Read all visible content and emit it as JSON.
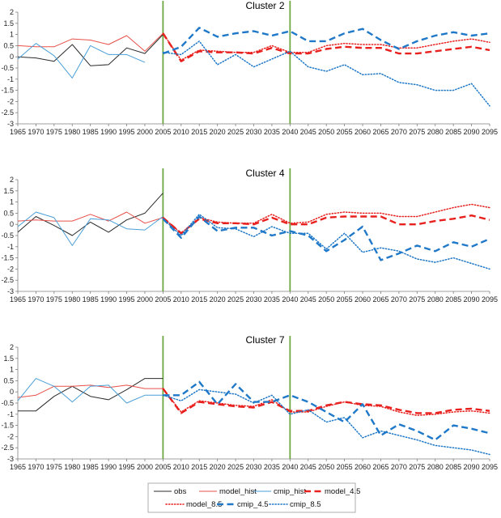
{
  "chart_data": [
    {
      "type": "line",
      "title": "Cluster 2",
      "xlabel": "",
      "ylabel": "",
      "ylim": [
        -3,
        2
      ],
      "yticks": [
        2,
        1.5,
        1,
        0.5,
        0,
        -0.5,
        -1,
        -1.5,
        -2,
        -2.5,
        -3
      ],
      "x": [
        1965,
        1970,
        1975,
        1980,
        1985,
        1990,
        1995,
        2000,
        2005,
        2010,
        2015,
        2020,
        2025,
        2030,
        2035,
        2040,
        2045,
        2050,
        2055,
        2060,
        2065,
        2070,
        2075,
        2080,
        2085,
        2090,
        2095
      ],
      "vlines": [
        2005,
        2040
      ],
      "grid": false,
      "series": [
        {
          "name": "obs",
          "x": [
            1965,
            1970,
            1975,
            1980,
            1985,
            1990,
            1995,
            2000,
            2005
          ],
          "values": [
            0.0,
            -0.05,
            -0.2,
            0.55,
            -0.4,
            -0.35,
            0.4,
            0.15,
            1.0
          ]
        },
        {
          "name": "model_hist",
          "x": [
            1965,
            1970,
            1975,
            1980,
            1985,
            1990,
            1995,
            2000,
            2005
          ],
          "values": [
            0.5,
            0.45,
            0.45,
            0.8,
            0.75,
            0.55,
            0.95,
            0.25,
            1.05
          ]
        },
        {
          "name": "cmip_hist",
          "x": [
            1965,
            1970,
            1975,
            1980,
            1985,
            1990,
            1995,
            2000
          ],
          "values": [
            -0.1,
            0.6,
            0.05,
            -0.95,
            0.5,
            0.1,
            0.1,
            -0.25
          ]
        },
        {
          "name": "model_4.5",
          "x": [
            2005,
            2010,
            2015,
            2020,
            2025,
            2030,
            2035,
            2040,
            2045,
            2050,
            2055,
            2060,
            2065,
            2070,
            2075,
            2080,
            2085,
            2090,
            2095
          ],
          "values": [
            1.05,
            -0.2,
            0.25,
            0.2,
            0.2,
            0.15,
            0.4,
            0.15,
            0.15,
            0.35,
            0.45,
            0.4,
            0.4,
            0.15,
            0.15,
            0.25,
            0.35,
            0.45,
            0.3
          ]
        },
        {
          "name": "model_8.5",
          "x": [
            2005,
            2010,
            2015,
            2020,
            2025,
            2030,
            2035,
            2040,
            2045,
            2050,
            2055,
            2060,
            2065,
            2070,
            2075,
            2080,
            2085,
            2090,
            2095
          ],
          "values": [
            1.05,
            -0.15,
            0.3,
            0.25,
            0.2,
            0.2,
            0.5,
            0.2,
            0.2,
            0.5,
            0.6,
            0.55,
            0.55,
            0.4,
            0.4,
            0.55,
            0.7,
            0.8,
            0.65
          ]
        },
        {
          "name": "cmip_4.5",
          "x": [
            2005,
            2010,
            2015,
            2020,
            2025,
            2030,
            2035,
            2040,
            2045,
            2050,
            2055,
            2060,
            2065,
            2070,
            2075,
            2080,
            2085,
            2090,
            2095
          ],
          "values": [
            0.15,
            0.45,
            1.3,
            0.9,
            1.05,
            1.15,
            0.95,
            1.15,
            0.7,
            0.7,
            1.05,
            1.25,
            0.75,
            0.35,
            0.7,
            0.95,
            1.1,
            0.95,
            1.05
          ]
        },
        {
          "name": "cmip_8.5",
          "x": [
            2005,
            2010,
            2015,
            2020,
            2025,
            2030,
            2035,
            2040,
            2045,
            2050,
            2055,
            2060,
            2065,
            2070,
            2075,
            2080,
            2085,
            2090,
            2095
          ],
          "values": [
            0.2,
            0.1,
            0.7,
            -0.35,
            0.1,
            -0.45,
            -0.1,
            0.25,
            -0.45,
            -0.65,
            -0.35,
            -0.8,
            -0.75,
            -1.15,
            -1.25,
            -1.5,
            -1.5,
            -1.2,
            -2.2
          ]
        }
      ]
    },
    {
      "type": "line",
      "title": "Cluster 4",
      "xlabel": "",
      "ylabel": "",
      "ylim": [
        -3,
        2
      ],
      "yticks": [
        2,
        1.5,
        1,
        0.5,
        0,
        -0.5,
        -1,
        -1.5,
        -2,
        -2.5,
        -3
      ],
      "x": [
        1965,
        1970,
        1975,
        1980,
        1985,
        1990,
        1995,
        2000,
        2005,
        2010,
        2015,
        2020,
        2025,
        2030,
        2035,
        2040,
        2045,
        2050,
        2055,
        2060,
        2065,
        2070,
        2075,
        2080,
        2085,
        2090,
        2095
      ],
      "vlines": [
        2005,
        2040
      ],
      "grid": false,
      "series": [
        {
          "name": "obs",
          "x": [
            1965,
            1970,
            1975,
            1980,
            1985,
            1990,
            1995,
            2000,
            2005
          ],
          "values": [
            -0.35,
            0.35,
            -0.05,
            -0.5,
            0.1,
            -0.35,
            0.2,
            0.5,
            1.4
          ]
        },
        {
          "name": "model_hist",
          "x": [
            1965,
            1970,
            1975,
            1980,
            1985,
            1990,
            1995,
            2000,
            2005
          ],
          "values": [
            0.15,
            0.2,
            0.15,
            0.15,
            0.45,
            0.15,
            0.55,
            0.05,
            0.3
          ]
        },
        {
          "name": "cmip_hist",
          "x": [
            1965,
            1970,
            1975,
            1980,
            1985,
            1990,
            1995,
            2000,
            2005
          ],
          "values": [
            -0.1,
            0.55,
            0.3,
            -0.95,
            0.25,
            0.2,
            -0.2,
            -0.25,
            0.35
          ]
        },
        {
          "name": "model_4.5",
          "x": [
            2005,
            2010,
            2015,
            2020,
            2025,
            2030,
            2035,
            2040,
            2045,
            2050,
            2055,
            2060,
            2065,
            2070,
            2075,
            2080,
            2085,
            2090,
            2095
          ],
          "values": [
            0.3,
            -0.4,
            0.25,
            0.05,
            0.05,
            0.0,
            0.3,
            0.0,
            0.0,
            0.3,
            0.35,
            0.35,
            0.35,
            0.0,
            0.0,
            0.15,
            0.25,
            0.4,
            0.2
          ]
        },
        {
          "name": "model_8.5",
          "x": [
            2005,
            2010,
            2015,
            2020,
            2025,
            2030,
            2035,
            2040,
            2045,
            2050,
            2055,
            2060,
            2065,
            2070,
            2075,
            2080,
            2085,
            2090,
            2095
          ],
          "values": [
            0.3,
            -0.4,
            0.3,
            0.1,
            0.05,
            0.05,
            0.45,
            0.05,
            0.1,
            0.45,
            0.55,
            0.5,
            0.5,
            0.35,
            0.35,
            0.55,
            0.75,
            0.9,
            0.75
          ]
        },
        {
          "name": "cmip_4.5",
          "x": [
            2005,
            2010,
            2015,
            2020,
            2025,
            2030,
            2035,
            2040,
            2045,
            2050,
            2055,
            2060,
            2065,
            2070,
            2075,
            2080,
            2085,
            2090,
            2095
          ],
          "values": [
            0.25,
            -0.6,
            0.35,
            -0.3,
            -0.15,
            -0.15,
            -0.5,
            -0.3,
            -0.5,
            -1.2,
            -0.7,
            -0.1,
            -1.6,
            -1.3,
            -0.95,
            -1.2,
            -0.8,
            -1.0,
            -0.65
          ]
        },
        {
          "name": "cmip_8.5",
          "x": [
            2005,
            2010,
            2015,
            2020,
            2025,
            2030,
            2035,
            2040,
            2045,
            2050,
            2055,
            2060,
            2065,
            2070,
            2075,
            2080,
            2085,
            2090,
            2095
          ],
          "values": [
            0.25,
            -0.5,
            0.45,
            -0.15,
            -0.2,
            -0.55,
            -0.1,
            -0.4,
            -0.4,
            -1.1,
            -0.4,
            -1.25,
            -1.05,
            -1.2,
            -1.55,
            -1.7,
            -1.5,
            -1.75,
            -2.0
          ]
        }
      ]
    },
    {
      "type": "line",
      "title": "Cluster 7",
      "xlabel": "",
      "ylabel": "",
      "ylim": [
        -3,
        2
      ],
      "yticks": [
        2,
        1.5,
        1,
        0.5,
        0,
        -0.5,
        -1,
        -1.5,
        -2,
        -2.5,
        -3
      ],
      "x": [
        1965,
        1970,
        1975,
        1980,
        1985,
        1990,
        1995,
        2000,
        2005,
        2010,
        2015,
        2020,
        2025,
        2030,
        2035,
        2040,
        2045,
        2050,
        2055,
        2060,
        2065,
        2070,
        2075,
        2080,
        2085,
        2090,
        2095
      ],
      "vlines": [
        2005,
        2040
      ],
      "grid": false,
      "series": [
        {
          "name": "obs",
          "x": [
            1965,
            1970,
            1975,
            1980,
            1985,
            1990,
            1995,
            2000,
            2005
          ],
          "values": [
            -0.85,
            -0.85,
            -0.2,
            0.25,
            -0.2,
            -0.35,
            0.1,
            0.6,
            0.6
          ]
        },
        {
          "name": "model_hist",
          "x": [
            1965,
            1970,
            1975,
            1980,
            1985,
            1990,
            1995,
            2000,
            2005
          ],
          "values": [
            -0.25,
            -0.15,
            0.25,
            0.25,
            0.3,
            0.2,
            0.3,
            0.15,
            0.15
          ]
        },
        {
          "name": "cmip_hist",
          "x": [
            1965,
            1970,
            1975,
            1980,
            1985,
            1990,
            1995,
            2000,
            2005
          ],
          "values": [
            -0.4,
            0.6,
            0.25,
            -0.45,
            0.25,
            0.3,
            -0.5,
            -0.15,
            -0.15
          ]
        },
        {
          "name": "model_4.5",
          "x": [
            2005,
            2010,
            2015,
            2020,
            2025,
            2030,
            2035,
            2040,
            2045,
            2050,
            2055,
            2060,
            2065,
            2070,
            2075,
            2080,
            2085,
            2090,
            2095
          ],
          "values": [
            0.15,
            -0.95,
            -0.45,
            -0.55,
            -0.65,
            -0.7,
            -0.45,
            -0.85,
            -0.85,
            -0.6,
            -0.45,
            -0.55,
            -0.6,
            -0.8,
            -0.95,
            -0.95,
            -0.8,
            -0.75,
            -0.85
          ]
        },
        {
          "name": "model_8.5",
          "x": [
            2005,
            2010,
            2015,
            2020,
            2025,
            2030,
            2035,
            2040,
            2045,
            2050,
            2055,
            2060,
            2065,
            2070,
            2075,
            2080,
            2085,
            2090,
            2095
          ],
          "values": [
            0.15,
            -0.9,
            -0.4,
            -0.5,
            -0.6,
            -0.65,
            -0.35,
            -0.9,
            -0.9,
            -0.65,
            -0.45,
            -0.6,
            -0.65,
            -0.9,
            -1.05,
            -1.0,
            -0.9,
            -0.85,
            -0.95
          ]
        },
        {
          "name": "cmip_4.5",
          "x": [
            2005,
            2010,
            2015,
            2020,
            2025,
            2030,
            2035,
            2040,
            2045,
            2050,
            2055,
            2060,
            2065,
            2070,
            2075,
            2080,
            2085,
            2090,
            2095
          ],
          "values": [
            -0.15,
            -0.15,
            0.45,
            -0.55,
            0.35,
            -0.45,
            -0.45,
            -0.15,
            -0.45,
            -0.9,
            -1.35,
            -0.55,
            -1.95,
            -1.45,
            -1.75,
            -2.15,
            -1.5,
            -1.65,
            -1.85
          ]
        },
        {
          "name": "cmip_8.5",
          "x": [
            2005,
            2010,
            2015,
            2020,
            2025,
            2030,
            2035,
            2040,
            2045,
            2050,
            2055,
            2060,
            2065,
            2070,
            2075,
            2080,
            2085,
            2090,
            2095
          ],
          "values": [
            -0.15,
            -0.4,
            0.1,
            0.0,
            -0.1,
            -0.5,
            -0.15,
            -1.0,
            -0.8,
            -1.35,
            -1.15,
            -2.05,
            -1.75,
            -1.95,
            -2.15,
            -2.4,
            -2.5,
            -2.6,
            -2.8
          ]
        }
      ]
    }
  ],
  "legend": {
    "placement": "bottom-center",
    "entries": [
      "obs",
      "model_hist",
      "cmip_hist",
      "model_4.5",
      "model_8.5",
      "cmip_4.5",
      "cmip_8.5"
    ]
  },
  "colors": {
    "obs": "#2b2b2b",
    "model_hist": "#e8504a",
    "cmip_hist": "#4a9fd8",
    "model_4.5": "#e8211f",
    "model_8.5": "#e8211f",
    "cmip_4.5": "#1f78c8",
    "cmip_8.5": "#1f78c8",
    "vline": "#6fa842",
    "axis": "#7f7f7f"
  },
  "styles": {
    "obs": "solid-thin",
    "model_hist": "solid-thin",
    "cmip_hist": "solid-thin",
    "model_4.5": "long-dash",
    "model_8.5": "dotted",
    "cmip_4.5": "long-dash",
    "cmip_8.5": "dotted"
  }
}
